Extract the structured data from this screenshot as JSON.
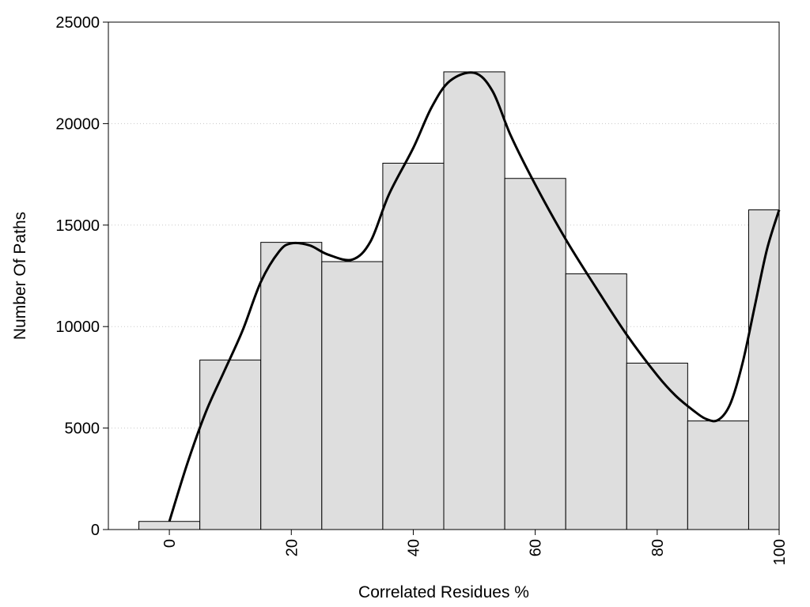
{
  "chart_data": {
    "type": "bar",
    "title": "",
    "xlabel": "Correlated Residues %",
    "ylabel": "Number Of Paths",
    "xlim": [
      -10,
      100
    ],
    "ylim": [
      0,
      25000
    ],
    "bin_width": 10,
    "x_ticks": [
      0,
      20,
      40,
      60,
      80,
      100
    ],
    "x_tick_labels": [
      "0",
      "20",
      "40",
      "60",
      "80",
      "100"
    ],
    "y_ticks": [
      0,
      5000,
      10000,
      15000,
      20000,
      25000
    ],
    "y_tick_labels": [
      "0",
      "5000",
      "10000",
      "15000",
      "20000",
      "25000"
    ],
    "grid": "horizontal dotted",
    "categories": [
      0,
      10,
      20,
      30,
      40,
      50,
      60,
      70,
      80,
      90,
      100
    ],
    "values": [
      400,
      8350,
      14150,
      13200,
      18050,
      22550,
      17300,
      12600,
      8200,
      5350,
      15750
    ],
    "bar_color": "#dedede",
    "bar_edge_color": "#000000",
    "curve": {
      "x": [
        0,
        3,
        6,
        9,
        12,
        15,
        18,
        20,
        23,
        26,
        30,
        33,
        36,
        40,
        43,
        46,
        50,
        53,
        56,
        60,
        65,
        70,
        75,
        80,
        83,
        86,
        88,
        90,
        92,
        94,
        96,
        98,
        100
      ],
      "y": [
        400,
        3300,
        5800,
        7800,
        9800,
        12200,
        13700,
        14100,
        14000,
        13550,
        13300,
        14200,
        16500,
        18800,
        20800,
        22100,
        22500,
        21600,
        19400,
        17000,
        14300,
        11900,
        9600,
        7600,
        6600,
        5850,
        5450,
        5400,
        6200,
        8200,
        11000,
        13800,
        15750
      ],
      "color": "#000000"
    }
  }
}
